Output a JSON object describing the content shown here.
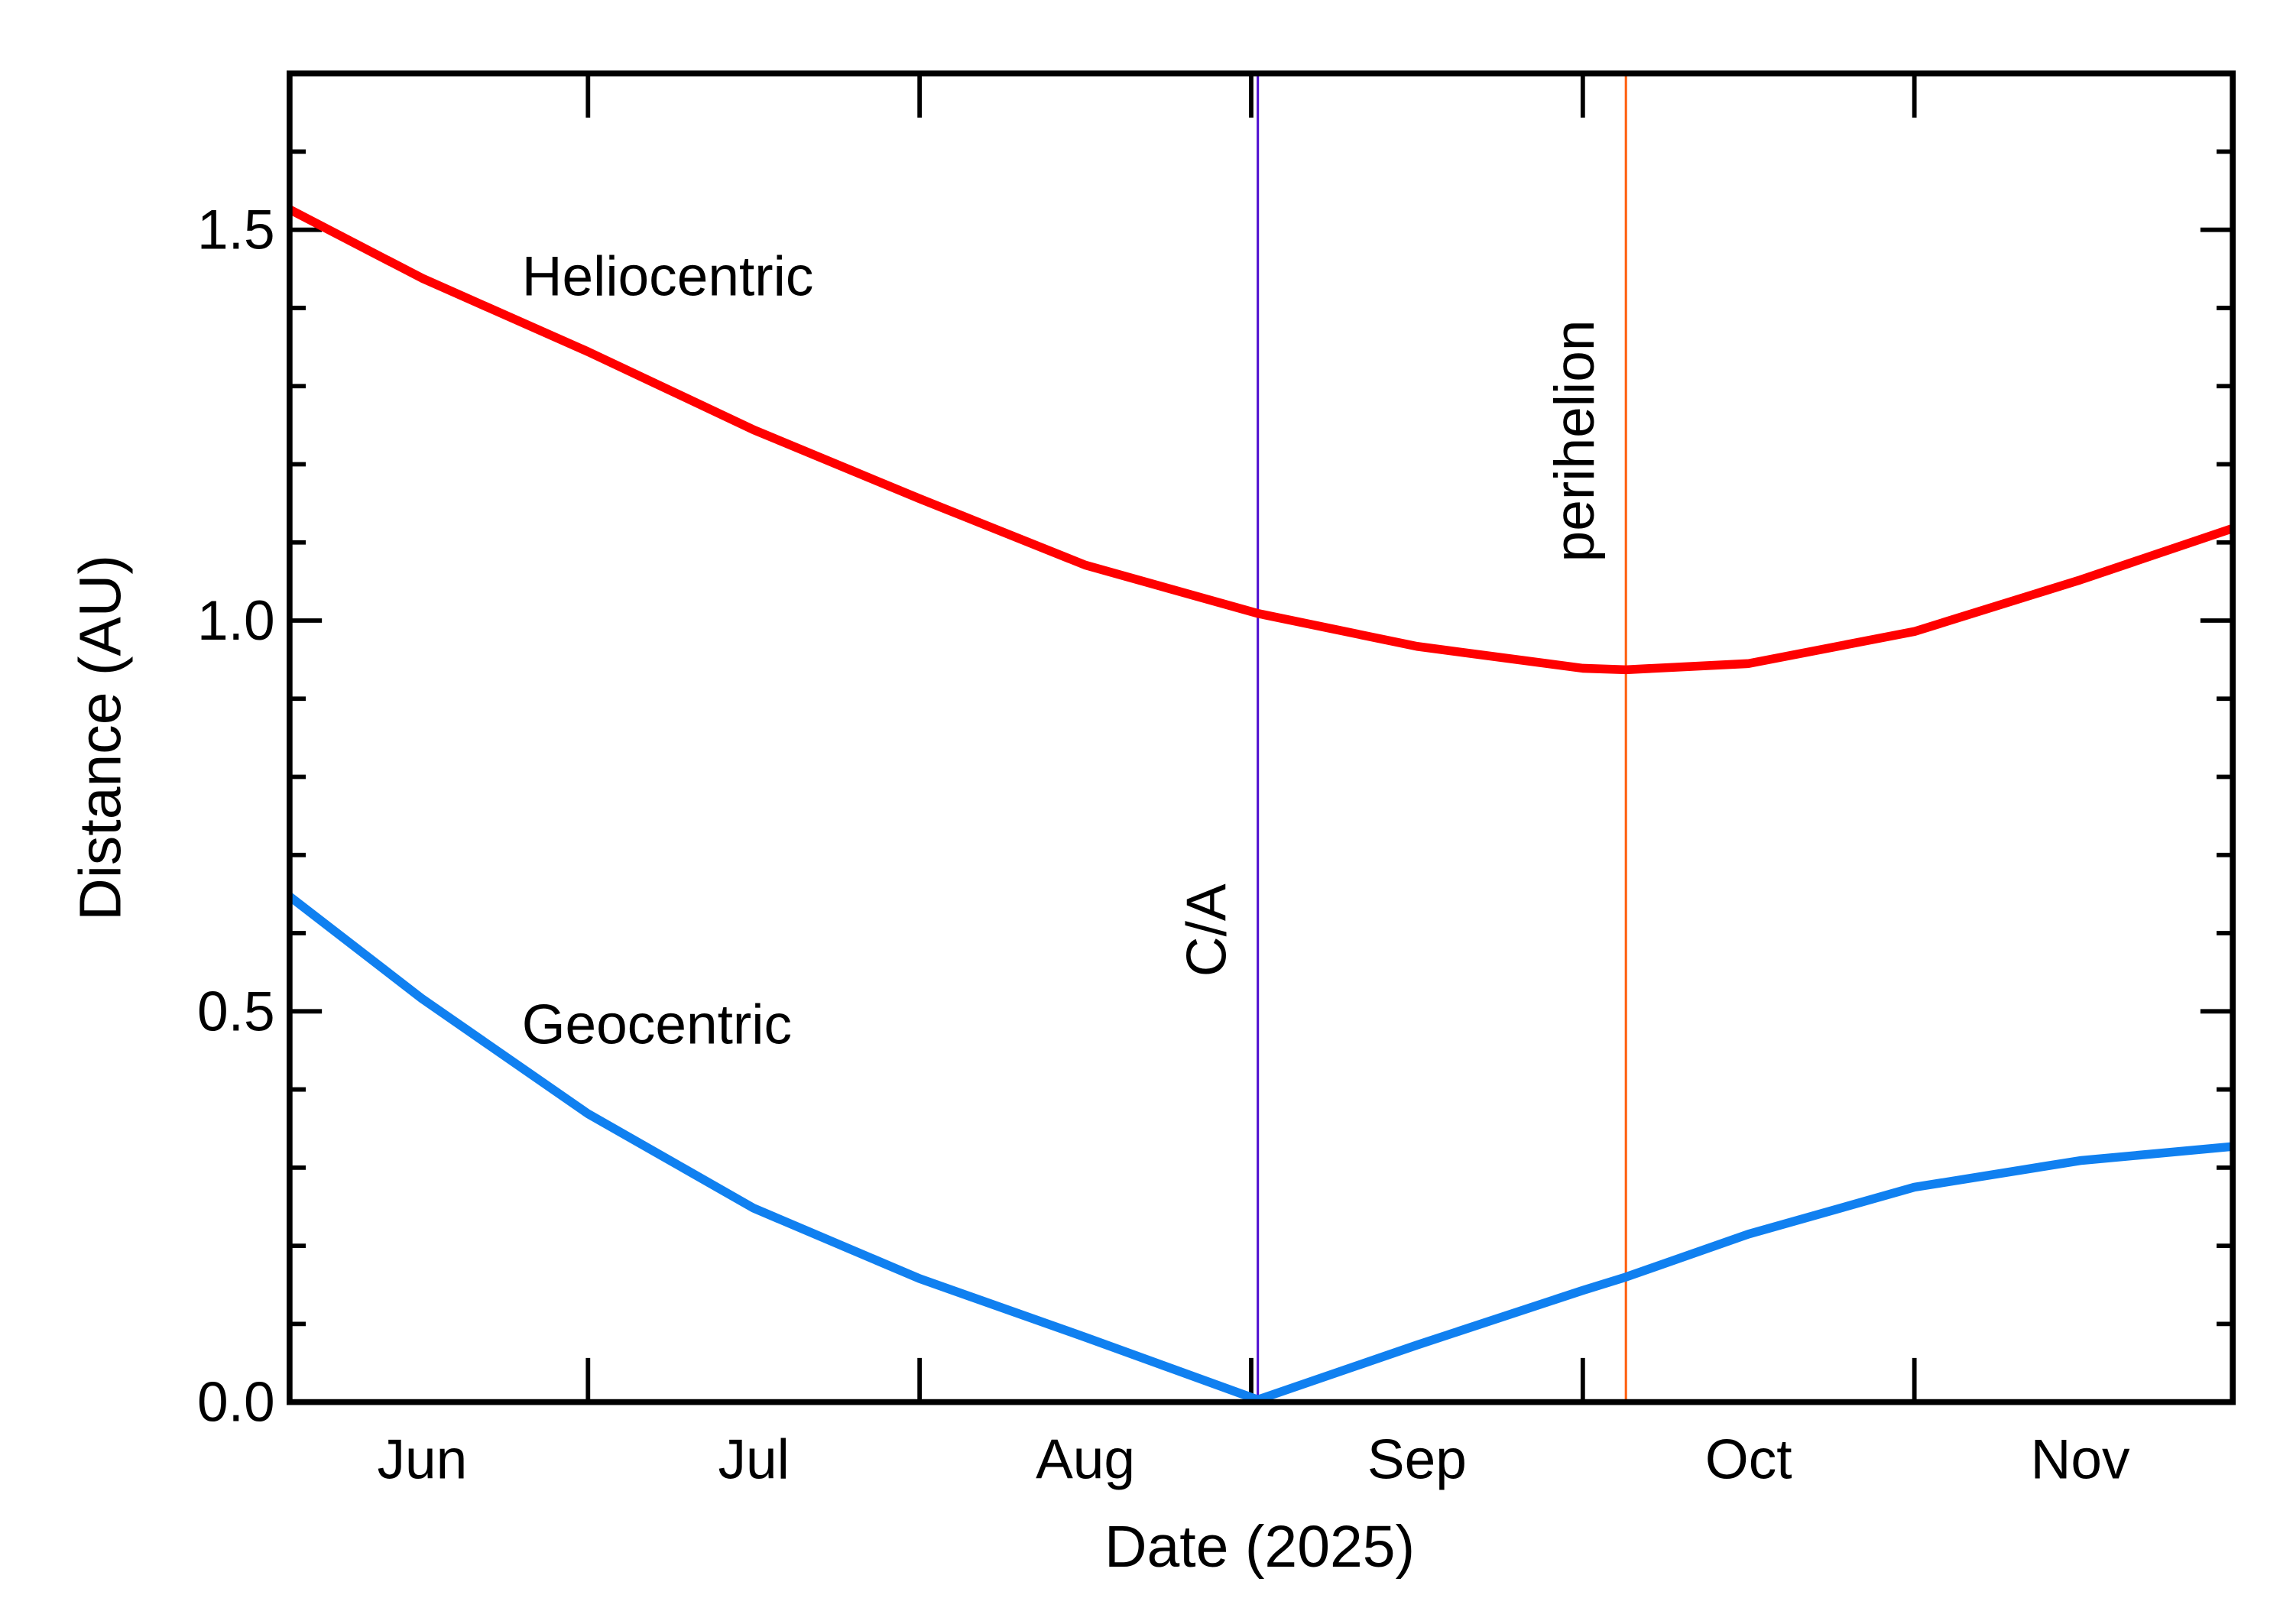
{
  "chart_data": {
    "type": "line",
    "x_label": "Date (2025)",
    "y_label": "Distance (AU)",
    "x": [
      6.1,
      6.5,
      7,
      7.5,
      8,
      8.5,
      9.02,
      9.5,
      10,
      10.13,
      10.5,
      11,
      11.5,
      11.96
    ],
    "series": [
      {
        "name": "Heliocentric",
        "color": "#ff0000",
        "values": [
          1.526,
          1.438,
          1.344,
          1.244,
          1.156,
          1.071,
          1.009,
          0.967,
          0.939,
          0.937,
          0.945,
          0.986,
          1.052,
          1.118
        ]
      },
      {
        "name": "Geocentric",
        "color": "#1080f0",
        "values": [
          0.647,
          0.516,
          0.369,
          0.248,
          0.158,
          0.083,
          0.003,
          0.073,
          0.143,
          0.16,
          0.215,
          0.275,
          0.309,
          0.327
        ]
      }
    ],
    "markers": [
      {
        "label": "C/A",
        "x": 9.02,
        "color": "#5010d0"
      },
      {
        "label": "perihelion",
        "x": 10.13,
        "color": "#ff6010"
      }
    ],
    "xlim": [
      6.1,
      11.96
    ],
    "xticks": [
      7,
      8,
      9,
      10,
      11
    ],
    "xtick_labels": [
      {
        "value": 6.5,
        "label": "Jun"
      },
      {
        "value": 7.5,
        "label": "Jul"
      },
      {
        "value": 8.5,
        "label": "Aug"
      },
      {
        "value": 9.5,
        "label": "Sep"
      },
      {
        "value": 10.5,
        "label": "Oct"
      },
      {
        "value": 11.5,
        "label": "Nov"
      }
    ],
    "ylim": [
      0,
      1.7
    ],
    "yticks": [
      {
        "value": 0,
        "label": "0.0"
      },
      0.5,
      {
        "value": 1,
        "label": "1.0"
      },
      1.5
    ],
    "yminorticks": [
      0.1,
      0.2,
      0.3,
      0.4,
      0.6,
      0.7,
      0.8,
      0.9,
      1.1,
      1.2,
      1.3,
      1.4,
      1.6
    ]
  }
}
